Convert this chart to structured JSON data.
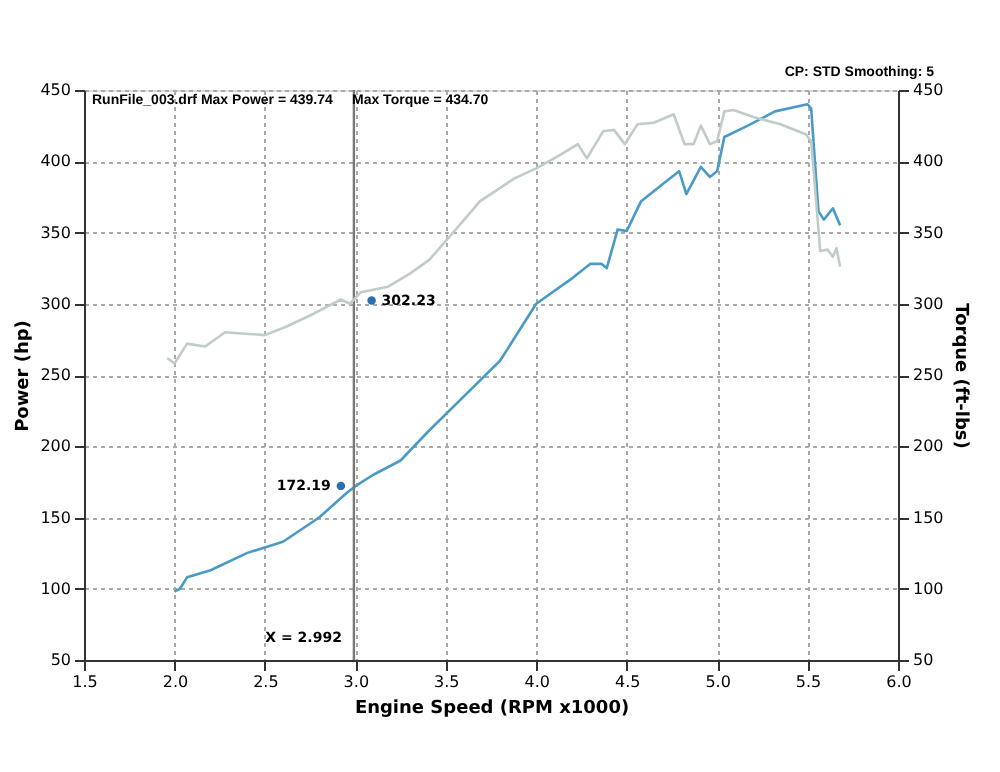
{
  "chart_data": {
    "type": "line",
    "xlabel": "Engine Speed (RPM x1000)",
    "ylabel": "Power (hp)",
    "y2label": "Torque (ft-lbs)",
    "series": [
      {
        "color": "#4a9ac6",
        "x": [
          2.0,
          2.03,
          2.07,
          2.2,
          2.4,
          2.6,
          2.8,
          2.95,
          3.0,
          3.1,
          3.25,
          3.4,
          3.6,
          3.8,
          4.0,
          4.2,
          4.3,
          4.36,
          4.39,
          4.45,
          4.5,
          4.58,
          4.7,
          4.79,
          4.83,
          4.91,
          4.96,
          5.0,
          5.04,
          5.17,
          5.32,
          5.5,
          5.52,
          5.56,
          5.59,
          5.64,
          5.68
        ],
        "values": [
          98,
          100,
          108,
          113,
          125,
          133,
          150,
          167,
          172,
          180,
          190,
          210,
          235,
          260,
          300,
          318,
          328,
          328,
          325,
          352,
          351,
          372,
          384,
          393,
          377,
          396,
          389,
          393,
          417,
          425,
          435,
          440,
          437,
          365,
          359,
          367,
          355
        ]
      },
      {
        "color": "#c0ccc8",
        "axis": "y2",
        "x": [
          1.96,
          2.0,
          2.07,
          2.17,
          2.28,
          2.39,
          2.5,
          2.62,
          2.77,
          2.92,
          2.97,
          3.03,
          3.18,
          3.3,
          3.41,
          3.52,
          3.69,
          3.88,
          4.0,
          4.14,
          4.23,
          4.28,
          4.37,
          4.43,
          4.49,
          4.56,
          4.65,
          4.76,
          4.82,
          4.87,
          4.91,
          4.96,
          5.0,
          5.04,
          5.09,
          5.2,
          5.35,
          5.49,
          5.52,
          5.57,
          5.61,
          5.64,
          5.66,
          5.68
        ],
        "values": [
          262,
          258,
          272,
          270,
          280,
          279,
          278,
          284,
          293,
          303,
          300,
          308,
          312,
          321,
          331,
          347,
          372,
          388,
          395,
          405,
          412,
          402,
          421,
          422,
          412,
          426,
          427,
          433,
          412,
          412,
          425,
          412,
          414,
          435,
          436,
          431,
          426,
          419,
          414,
          337,
          338,
          333,
          339,
          326
        ]
      }
    ],
    "xlim": [
      1.5,
      6.0
    ],
    "xticks": [
      1.5,
      {
        "value": 2,
        "label": "2.0"
      },
      2.5,
      {
        "value": 3,
        "label": "3.0"
      },
      3.5,
      {
        "value": 4,
        "label": "4.0"
      },
      4.5,
      {
        "value": 5,
        "label": "5.0"
      },
      5.5,
      {
        "value": 6,
        "label": "6.0"
      }
    ],
    "ylim": [
      50,
      450
    ],
    "yticks": [
      50,
      100,
      150,
      200,
      250,
      300,
      350,
      400,
      450
    ],
    "y2lim": [
      50,
      450
    ],
    "y2ticks": [
      50,
      100,
      150,
      200,
      250,
      300,
      350,
      400,
      450
    ],
    "grid": true,
    "line_style": "solid",
    "ref_lines": [
      {
        "axis": "x",
        "value": 2.992,
        "label": "X = 2.992",
        "color": "#777777"
      }
    ],
    "annotations": [
      "RunFile_003.drf Max Power = 439.74",
      "Max Torque = 434.70",
      "CP: STD  Smoothing: 5",
      {
        "text": "172.19",
        "x": 2.92,
        "y": 172.19
      },
      {
        "text": "302.23",
        "x": 3.09,
        "y": 302.23
      }
    ]
  }
}
